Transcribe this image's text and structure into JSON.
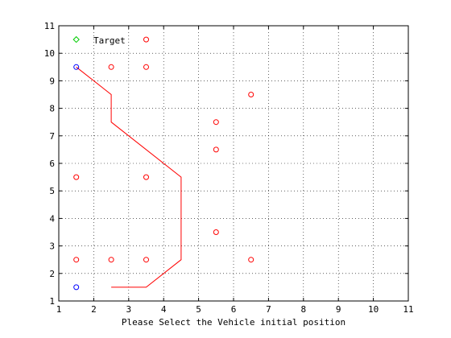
{
  "chart_data": {
    "type": "scatter",
    "title": "",
    "xlabel": "Please Select the Vehicle initial position",
    "ylabel": "",
    "xlim": [
      1,
      11
    ],
    "ylim": [
      1,
      11
    ],
    "xticks": [
      1,
      2,
      3,
      4,
      5,
      6,
      7,
      8,
      9,
      10,
      11
    ],
    "yticks": [
      1,
      2,
      3,
      4,
      5,
      6,
      7,
      8,
      9,
      10,
      11
    ],
    "grid": true,
    "legend_position": "top-left",
    "series": [
      {
        "name": "Target",
        "kind": "marker",
        "marker": "diamond",
        "color": "#00cc00",
        "points": [
          [
            1.5,
            10.5
          ]
        ]
      },
      {
        "kind": "marker",
        "marker": "circle",
        "color": "#ff0000",
        "points": [
          [
            3.5,
            10.5
          ],
          [
            2.5,
            9.5
          ],
          [
            3.5,
            9.5
          ],
          [
            6.5,
            8.5
          ],
          [
            5.5,
            7.5
          ],
          [
            5.5,
            6.5
          ],
          [
            1.5,
            5.5
          ],
          [
            3.5,
            5.5
          ],
          [
            5.5,
            3.5
          ],
          [
            1.5,
            2.5
          ],
          [
            2.5,
            2.5
          ],
          [
            3.5,
            2.5
          ],
          [
            6.5,
            2.5
          ]
        ]
      },
      {
        "kind": "marker",
        "marker": "circle",
        "color": "#0000ff",
        "points": [
          [
            1.5,
            9.5
          ],
          [
            1.5,
            1.5
          ]
        ]
      },
      {
        "kind": "line",
        "color": "#ff0000",
        "points": [
          [
            1.5,
            9.5
          ],
          [
            2.5,
            8.5
          ],
          [
            2.5,
            7.5
          ],
          [
            4.5,
            5.5
          ],
          [
            4.5,
            2.5
          ],
          [
            3.5,
            1.5
          ],
          [
            2.5,
            1.5
          ]
        ]
      }
    ]
  }
}
